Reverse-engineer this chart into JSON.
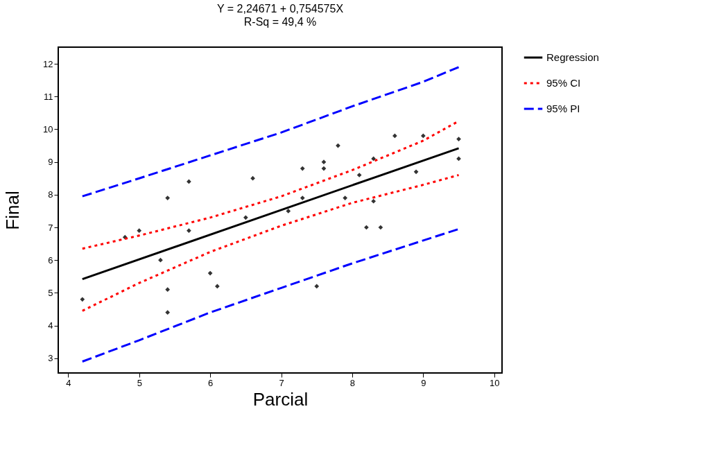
{
  "chart_data": {
    "type": "scatter",
    "title": "Y = 2,24671 + 0,754575X",
    "subtitle": "R-Sq = 49,4 %",
    "xlabel": "Parcial",
    "ylabel": "Final",
    "xlim": [
      3.86,
      10.11
    ],
    "ylim": [
      2.55,
      12.51
    ],
    "xticks": [
      4,
      5,
      6,
      7,
      8,
      9,
      10
    ],
    "yticks": [
      3,
      4,
      5,
      6,
      7,
      8,
      9,
      10,
      11,
      12
    ],
    "grid": false,
    "legend": "right",
    "series": [
      {
        "color": "#333333",
        "marker": "diamond",
        "x": [
          4.2,
          4.8,
          5.0,
          5.3,
          5.4,
          5.4,
          5.4,
          5.7,
          5.7,
          6.0,
          6.1,
          6.5,
          6.6,
          7.1,
          7.3,
          7.3,
          7.5,
          7.6,
          7.6,
          7.8,
          7.9,
          8.1,
          8.2,
          8.3,
          8.3,
          8.4,
          8.6,
          8.9,
          9.0,
          9.5,
          9.5
        ],
        "values": [
          4.8,
          6.7,
          6.9,
          6.0,
          7.9,
          5.1,
          4.4,
          8.4,
          6.9,
          5.6,
          5.2,
          7.3,
          8.5,
          7.5,
          8.8,
          7.9,
          5.2,
          9.0,
          8.8,
          9.5,
          7.9,
          8.6,
          7.0,
          9.1,
          7.8,
          7.0,
          9.8,
          8.7,
          9.8,
          9.7,
          9.1
        ]
      },
      {
        "type": "line",
        "name": "Regression",
        "color": "#000000",
        "line_style": "solid",
        "x": [
          4.2,
          9.5
        ],
        "values": [
          5.42,
          9.42
        ]
      },
      {
        "type": "line",
        "name": "95% CI",
        "color": "#ff0000",
        "line_style": "dotted",
        "x": [
          4.2,
          5,
          6,
          7,
          8,
          9,
          9.5
        ],
        "values": [
          6.35,
          6.75,
          7.3,
          7.95,
          8.75,
          9.65,
          10.25
        ]
      },
      {
        "type": "line",
        "color": "#ff0000",
        "line_style": "dotted",
        "x": [
          4.2,
          5,
          6,
          7,
          8,
          9,
          9.5
        ],
        "values": [
          4.45,
          5.3,
          6.25,
          7.05,
          7.75,
          8.3,
          8.6
        ]
      },
      {
        "type": "line",
        "name": "95% PI",
        "color": "#0000ff",
        "line_style": "dashed",
        "x": [
          4.2,
          5,
          6,
          7,
          8,
          9,
          9.5
        ],
        "values": [
          7.95,
          8.5,
          9.2,
          9.9,
          10.7,
          11.45,
          11.9
        ]
      },
      {
        "type": "line",
        "color": "#0000ff",
        "line_style": "dashed",
        "x": [
          4.2,
          5,
          6,
          7,
          8,
          9,
          9.5
        ],
        "values": [
          2.9,
          3.55,
          4.4,
          5.15,
          5.9,
          6.6,
          6.95
        ]
      }
    ]
  }
}
